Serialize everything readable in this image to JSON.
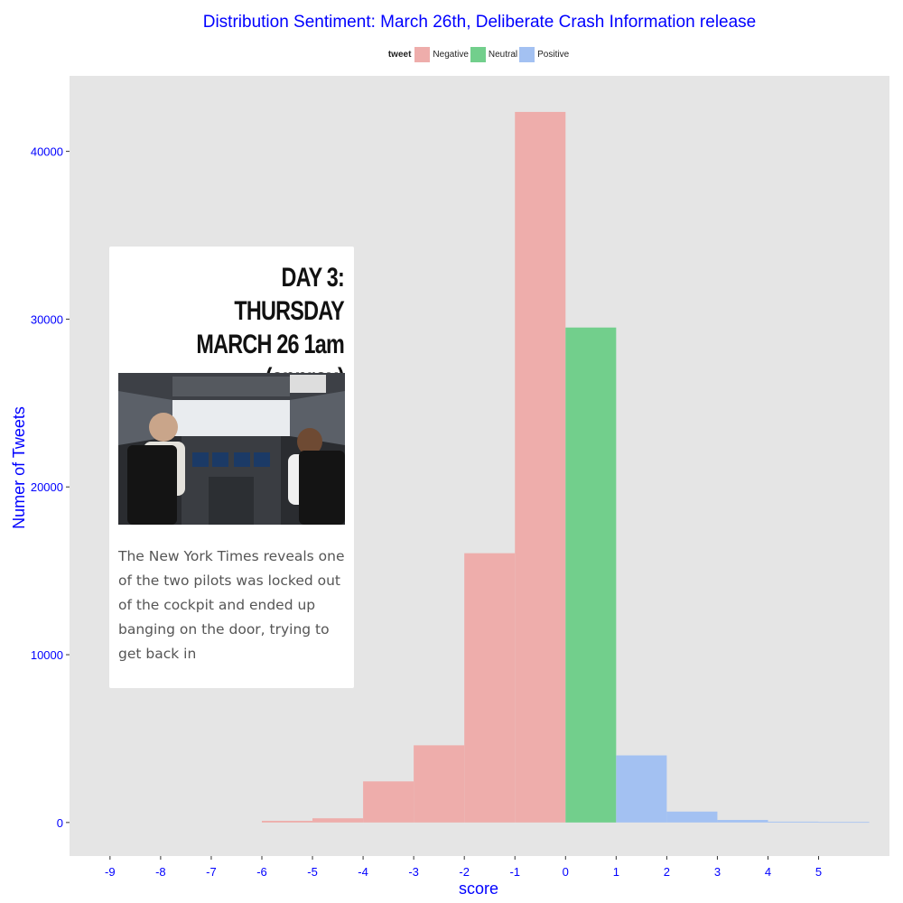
{
  "chart_data": {
    "type": "bar",
    "title": "Distribution Sentiment: March 26th, Deliberate Crash Information release",
    "xlabel": "score",
    "ylabel": "Numer of Tweets",
    "x_ticks": [
      "-9",
      "-8",
      "-7",
      "-6",
      "-5",
      "-4",
      "-3",
      "-2",
      "-1",
      "0",
      "1",
      "2",
      "3",
      "4",
      "5"
    ],
    "x_range": [
      -9.8,
      6.4
    ],
    "y_ticks": [
      0,
      10000,
      20000,
      30000,
      40000
    ],
    "ylim": [
      -2000,
      44500
    ],
    "legend_title": "tweet",
    "legend_position": "top",
    "grid": false,
    "background": "#e5e5e5",
    "series": [
      {
        "name": "Negative",
        "color": "#eeadab",
        "bins": [
          {
            "start": -6,
            "end": -5,
            "value": 100
          },
          {
            "start": -5,
            "end": -4,
            "value": 250
          },
          {
            "start": -4,
            "end": -3,
            "value": 2450
          },
          {
            "start": -3,
            "end": -2,
            "value": 4600
          },
          {
            "start": -2,
            "end": -1,
            "value": 16050
          },
          {
            "start": -1,
            "end": 0,
            "value": 42350
          }
        ]
      },
      {
        "name": "Neutral",
        "color": "#72cf8c",
        "bins": [
          {
            "start": 0,
            "end": 1,
            "value": 29500
          }
        ]
      },
      {
        "name": "Positive",
        "color": "#a3c1f2",
        "bins": [
          {
            "start": 1,
            "end": 2,
            "value": 4000
          },
          {
            "start": 2,
            "end": 3,
            "value": 650
          },
          {
            "start": 3,
            "end": 4,
            "value": 150
          },
          {
            "start": 4,
            "end": 5,
            "value": 50
          },
          {
            "start": 5,
            "end": 6,
            "value": 30
          }
        ]
      }
    ]
  },
  "card": {
    "heading_line1": "DAY 3: THURSDAY",
    "heading_line2": "MARCH 26 1am",
    "heading_line3": "(approx)",
    "photo_icon": "cockpit-photo",
    "body": "The New York Times reveals one of the two pilots was locked out of the cockpit and ended up banging on the door, trying to get back in"
  },
  "colors": {
    "text_accent": "#0000ff",
    "panel": "#e5e5e5"
  }
}
